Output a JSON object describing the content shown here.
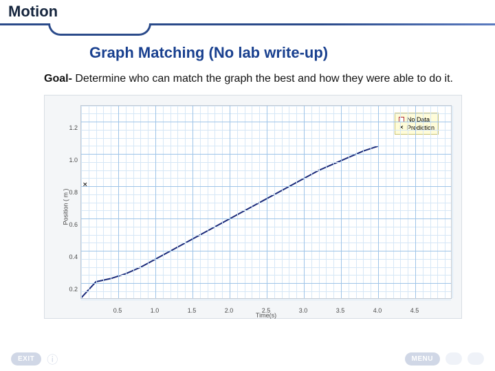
{
  "header": {
    "title": "Motion",
    "accent_color": "#2a4a8a"
  },
  "subtitle": "Graph Matching (No lab write-up)",
  "goal": {
    "bold": "Goal-",
    "text": " Determine who can match the graph the best and how they were able to do it."
  },
  "chart": {
    "type": "line",
    "background_color": "#f4f6f8",
    "plot_bg": "#ffffff",
    "grid_major_color": "#9ec4e8",
    "grid_minor_color": "#d6e7f6",
    "xlabel": "Time(s)",
    "ylabel": "Position ( m )",
    "label_fontsize": 9,
    "tick_fontsize": 9,
    "xlim": [
      0.0,
      5.0
    ],
    "ylim": [
      0.1,
      1.3
    ],
    "xticks": [
      0.5,
      1.0,
      1.5,
      2.0,
      2.5,
      3.0,
      3.5,
      4.0,
      4.5
    ],
    "yticks": [
      0.2,
      0.4,
      0.6,
      0.8,
      1.0,
      1.2
    ],
    "x_minor_step": 0.1,
    "y_minor_step": 0.05,
    "legend": {
      "bg": "#fffcd8",
      "border": "#c9c373",
      "items": [
        {
          "swatch": "#ffffff",
          "border": "#b03030",
          "label": "No Data"
        },
        {
          "swatch": "#000000",
          "mark": "✕",
          "label": "Prediction"
        }
      ]
    },
    "series": {
      "name": "Prediction",
      "color": "#1a2a7a",
      "line_width": 2,
      "points": [
        [
          0.0,
          0.11
        ],
        [
          0.2,
          0.21
        ],
        [
          0.4,
          0.23
        ],
        [
          0.6,
          0.26
        ],
        [
          0.8,
          0.3
        ],
        [
          1.0,
          0.35
        ],
        [
          1.2,
          0.4
        ],
        [
          1.4,
          0.45
        ],
        [
          1.6,
          0.5
        ],
        [
          1.8,
          0.55
        ],
        [
          2.0,
          0.6
        ],
        [
          2.2,
          0.65
        ],
        [
          2.4,
          0.7
        ],
        [
          2.6,
          0.75
        ],
        [
          2.8,
          0.8
        ],
        [
          3.0,
          0.85
        ],
        [
          3.2,
          0.9
        ],
        [
          3.4,
          0.94
        ],
        [
          3.6,
          0.98
        ],
        [
          3.8,
          1.02
        ],
        [
          4.0,
          1.05
        ]
      ]
    }
  },
  "footer": {
    "exit_label": "EXIT",
    "menu_label": "MENU"
  }
}
